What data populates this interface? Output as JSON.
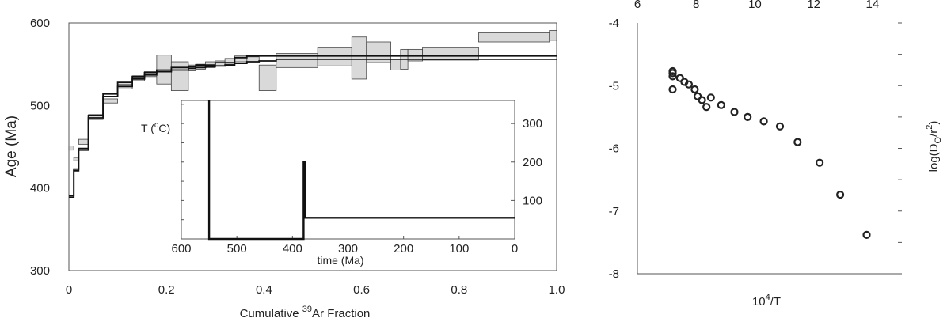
{
  "chart_data": [
    {
      "type": "step",
      "xlabel": "Cumulative",
      "xlabel_sup": "39",
      "xlabel_tail": "Ar Fraction",
      "ylabel": "Age (Ma)",
      "xlim": [
        0,
        1.0
      ],
      "ylim": [
        300,
        600
      ],
      "xticks": [
        "0",
        "0.2",
        "0.4",
        "0.6",
        "0.8",
        "1.0"
      ],
      "xtick_values": [
        0,
        0.2,
        0.4,
        0.6,
        0.8,
        1.0
      ],
      "yticks": [
        "300",
        "400",
        "500",
        "600"
      ],
      "ytick_values": [
        300,
        400,
        500,
        600
      ],
      "spectrum_boxes": [
        {
          "x0": 0.0,
          "x1": 0.01,
          "y0": 446,
          "y1": 451
        },
        {
          "x0": 0.01,
          "x1": 0.02,
          "y0": 433,
          "y1": 437
        },
        {
          "x0": 0.02,
          "x1": 0.04,
          "y0": 453,
          "y1": 459
        },
        {
          "x0": 0.04,
          "x1": 0.07,
          "y0": 483,
          "y1": 489
        },
        {
          "x0": 0.07,
          "x1": 0.1,
          "y0": 503,
          "y1": 508
        },
        {
          "x0": 0.1,
          "x1": 0.13,
          "y0": 520,
          "y1": 526
        },
        {
          "x0": 0.13,
          "x1": 0.155,
          "y0": 530,
          "y1": 536
        },
        {
          "x0": 0.155,
          "x1": 0.18,
          "y0": 535,
          "y1": 541
        },
        {
          "x0": 0.18,
          "x1": 0.21,
          "y0": 526,
          "y1": 561
        },
        {
          "x0": 0.21,
          "x1": 0.245,
          "y0": 518,
          "y1": 553
        },
        {
          "x0": 0.245,
          "x1": 0.26,
          "y0": 542,
          "y1": 549
        },
        {
          "x0": 0.26,
          "x1": 0.28,
          "y0": 544,
          "y1": 550
        },
        {
          "x0": 0.28,
          "x1": 0.3,
          "y0": 546,
          "y1": 553
        },
        {
          "x0": 0.3,
          "x1": 0.32,
          "y0": 548,
          "y1": 554
        },
        {
          "x0": 0.32,
          "x1": 0.34,
          "y0": 550,
          "y1": 557
        },
        {
          "x0": 0.34,
          "x1": 0.365,
          "y0": 553,
          "y1": 560
        },
        {
          "x0": 0.365,
          "x1": 0.39,
          "y0": 553,
          "y1": 559
        },
        {
          "x0": 0.39,
          "x1": 0.425,
          "y0": 518,
          "y1": 549
        },
        {
          "x0": 0.425,
          "x1": 0.51,
          "y0": 546,
          "y1": 563
        },
        {
          "x0": 0.51,
          "x1": 0.58,
          "y0": 548,
          "y1": 570
        },
        {
          "x0": 0.58,
          "x1": 0.61,
          "y0": 532,
          "y1": 583
        },
        {
          "x0": 0.61,
          "x1": 0.66,
          "y0": 552,
          "y1": 577
        },
        {
          "x0": 0.66,
          "x1": 0.68,
          "y0": 543,
          "y1": 556
        },
        {
          "x0": 0.68,
          "x1": 0.695,
          "y0": 544,
          "y1": 568
        },
        {
          "x0": 0.695,
          "x1": 0.725,
          "y0": 554,
          "y1": 568
        },
        {
          "x0": 0.725,
          "x1": 0.84,
          "y0": 555,
          "y1": 570
        },
        {
          "x0": 0.84,
          "x1": 0.985,
          "y0": 577,
          "y1": 588
        },
        {
          "x0": 0.985,
          "x1": 1.0,
          "y0": 579,
          "y1": 591
        }
      ],
      "model_lines": [
        {
          "x": [
            0,
            0.01,
            0.01,
            0.02,
            0.02,
            0.04,
            0.04,
            0.07,
            0.07,
            0.1,
            0.1,
            0.13,
            0.13,
            0.155,
            0.155,
            0.18,
            0.18,
            0.21,
            0.21,
            0.245,
            0.245,
            0.26,
            0.26,
            0.28,
            0.28,
            0.3,
            0.3,
            0.32,
            0.32,
            0.34,
            0.34,
            0.365,
            0.365,
            0.39,
            0.39,
            0.425,
            0.425,
            1.0
          ],
          "y": [
            389,
            389,
            421,
            421,
            446,
            446,
            485,
            485,
            511,
            511,
            523,
            523,
            532,
            532,
            537,
            537,
            541,
            541,
            543,
            543,
            545,
            545,
            546,
            546,
            547,
            547,
            548,
            548,
            549,
            549,
            551,
            551,
            553,
            553,
            554,
            554,
            556,
            556
          ]
        },
        {
          "x": [
            0,
            0.01,
            0.01,
            0.02,
            0.02,
            0.04,
            0.04,
            0.07,
            0.07,
            0.1,
            0.1,
            0.13,
            0.13,
            0.155,
            0.155,
            0.18,
            0.18,
            0.21,
            0.21,
            0.245,
            0.245,
            0.26,
            0.26,
            0.3,
            0.3,
            0.34,
            0.34,
            0.365,
            0.365,
            0.425,
            0.425,
            1.0
          ],
          "y": [
            391,
            391,
            423,
            423,
            448,
            448,
            488,
            488,
            514,
            514,
            528,
            528,
            535,
            535,
            540,
            540,
            543,
            543,
            546,
            546,
            547,
            547,
            549,
            549,
            552,
            552,
            558,
            558,
            560,
            560,
            560,
            560
          ]
        }
      ],
      "inset": {
        "ylabel_T": "T (",
        "ylabel_sup": "o",
        "ylabel_tail": "C)",
        "xlabel": "time (Ma)",
        "xlim": [
          600,
          0
        ],
        "ylim": [
          0,
          360
        ],
        "xticks": [
          "600",
          "500",
          "400",
          "300",
          "200",
          "100",
          "0"
        ],
        "xtick_values": [
          600,
          500,
          400,
          300,
          200,
          100,
          0
        ],
        "yticks": [
          "100",
          "200",
          "300"
        ],
        "ytick_values": [
          100,
          200,
          300
        ],
        "left_minor_ticks": [
          0,
          50,
          100,
          150,
          200,
          250,
          300,
          350
        ],
        "path_x": [
          550,
          550,
          380,
          380,
          378,
          378,
          0
        ],
        "path_y": [
          360,
          0,
          0,
          200,
          200,
          55,
          55
        ]
      }
    },
    {
      "type": "scatter",
      "xlabel": "10",
      "xlabel_sup": "4",
      "xlabel_tail": "/T",
      "ylabel": "log(D",
      "ylabel_sub": "O",
      "ylabel_mid": "/r",
      "ylabel_sup": "2",
      "ylabel_tail": ")",
      "xlim": [
        6,
        15
      ],
      "ylim": [
        -8,
        -4
      ],
      "xticks": [
        "6",
        "8",
        "10",
        "12",
        "14"
      ],
      "xtick_values": [
        6,
        8,
        10,
        12,
        14
      ],
      "yticks": [
        "-4",
        "-5",
        "-6",
        "-7",
        "-8"
      ],
      "ytick_values": [
        -4,
        -5,
        -6,
        -7,
        -8
      ],
      "x": [
        7.2,
        7.2,
        7.2,
        7.2,
        7.45,
        7.6,
        7.75,
        7.95,
        8.05,
        8.2,
        8.35,
        8.5,
        8.85,
        9.3,
        9.75,
        10.3,
        10.85,
        11.45,
        12.2,
        12.9,
        13.8
      ],
      "y": [
        -4.77,
        -4.8,
        -4.85,
        -5.06,
        -4.88,
        -4.94,
        -4.98,
        -5.06,
        -5.17,
        -5.23,
        -5.34,
        -5.19,
        -5.31,
        -5.42,
        -5.5,
        -5.57,
        -5.65,
        -5.9,
        -6.23,
        -6.74,
        -7.38
      ]
    }
  ]
}
